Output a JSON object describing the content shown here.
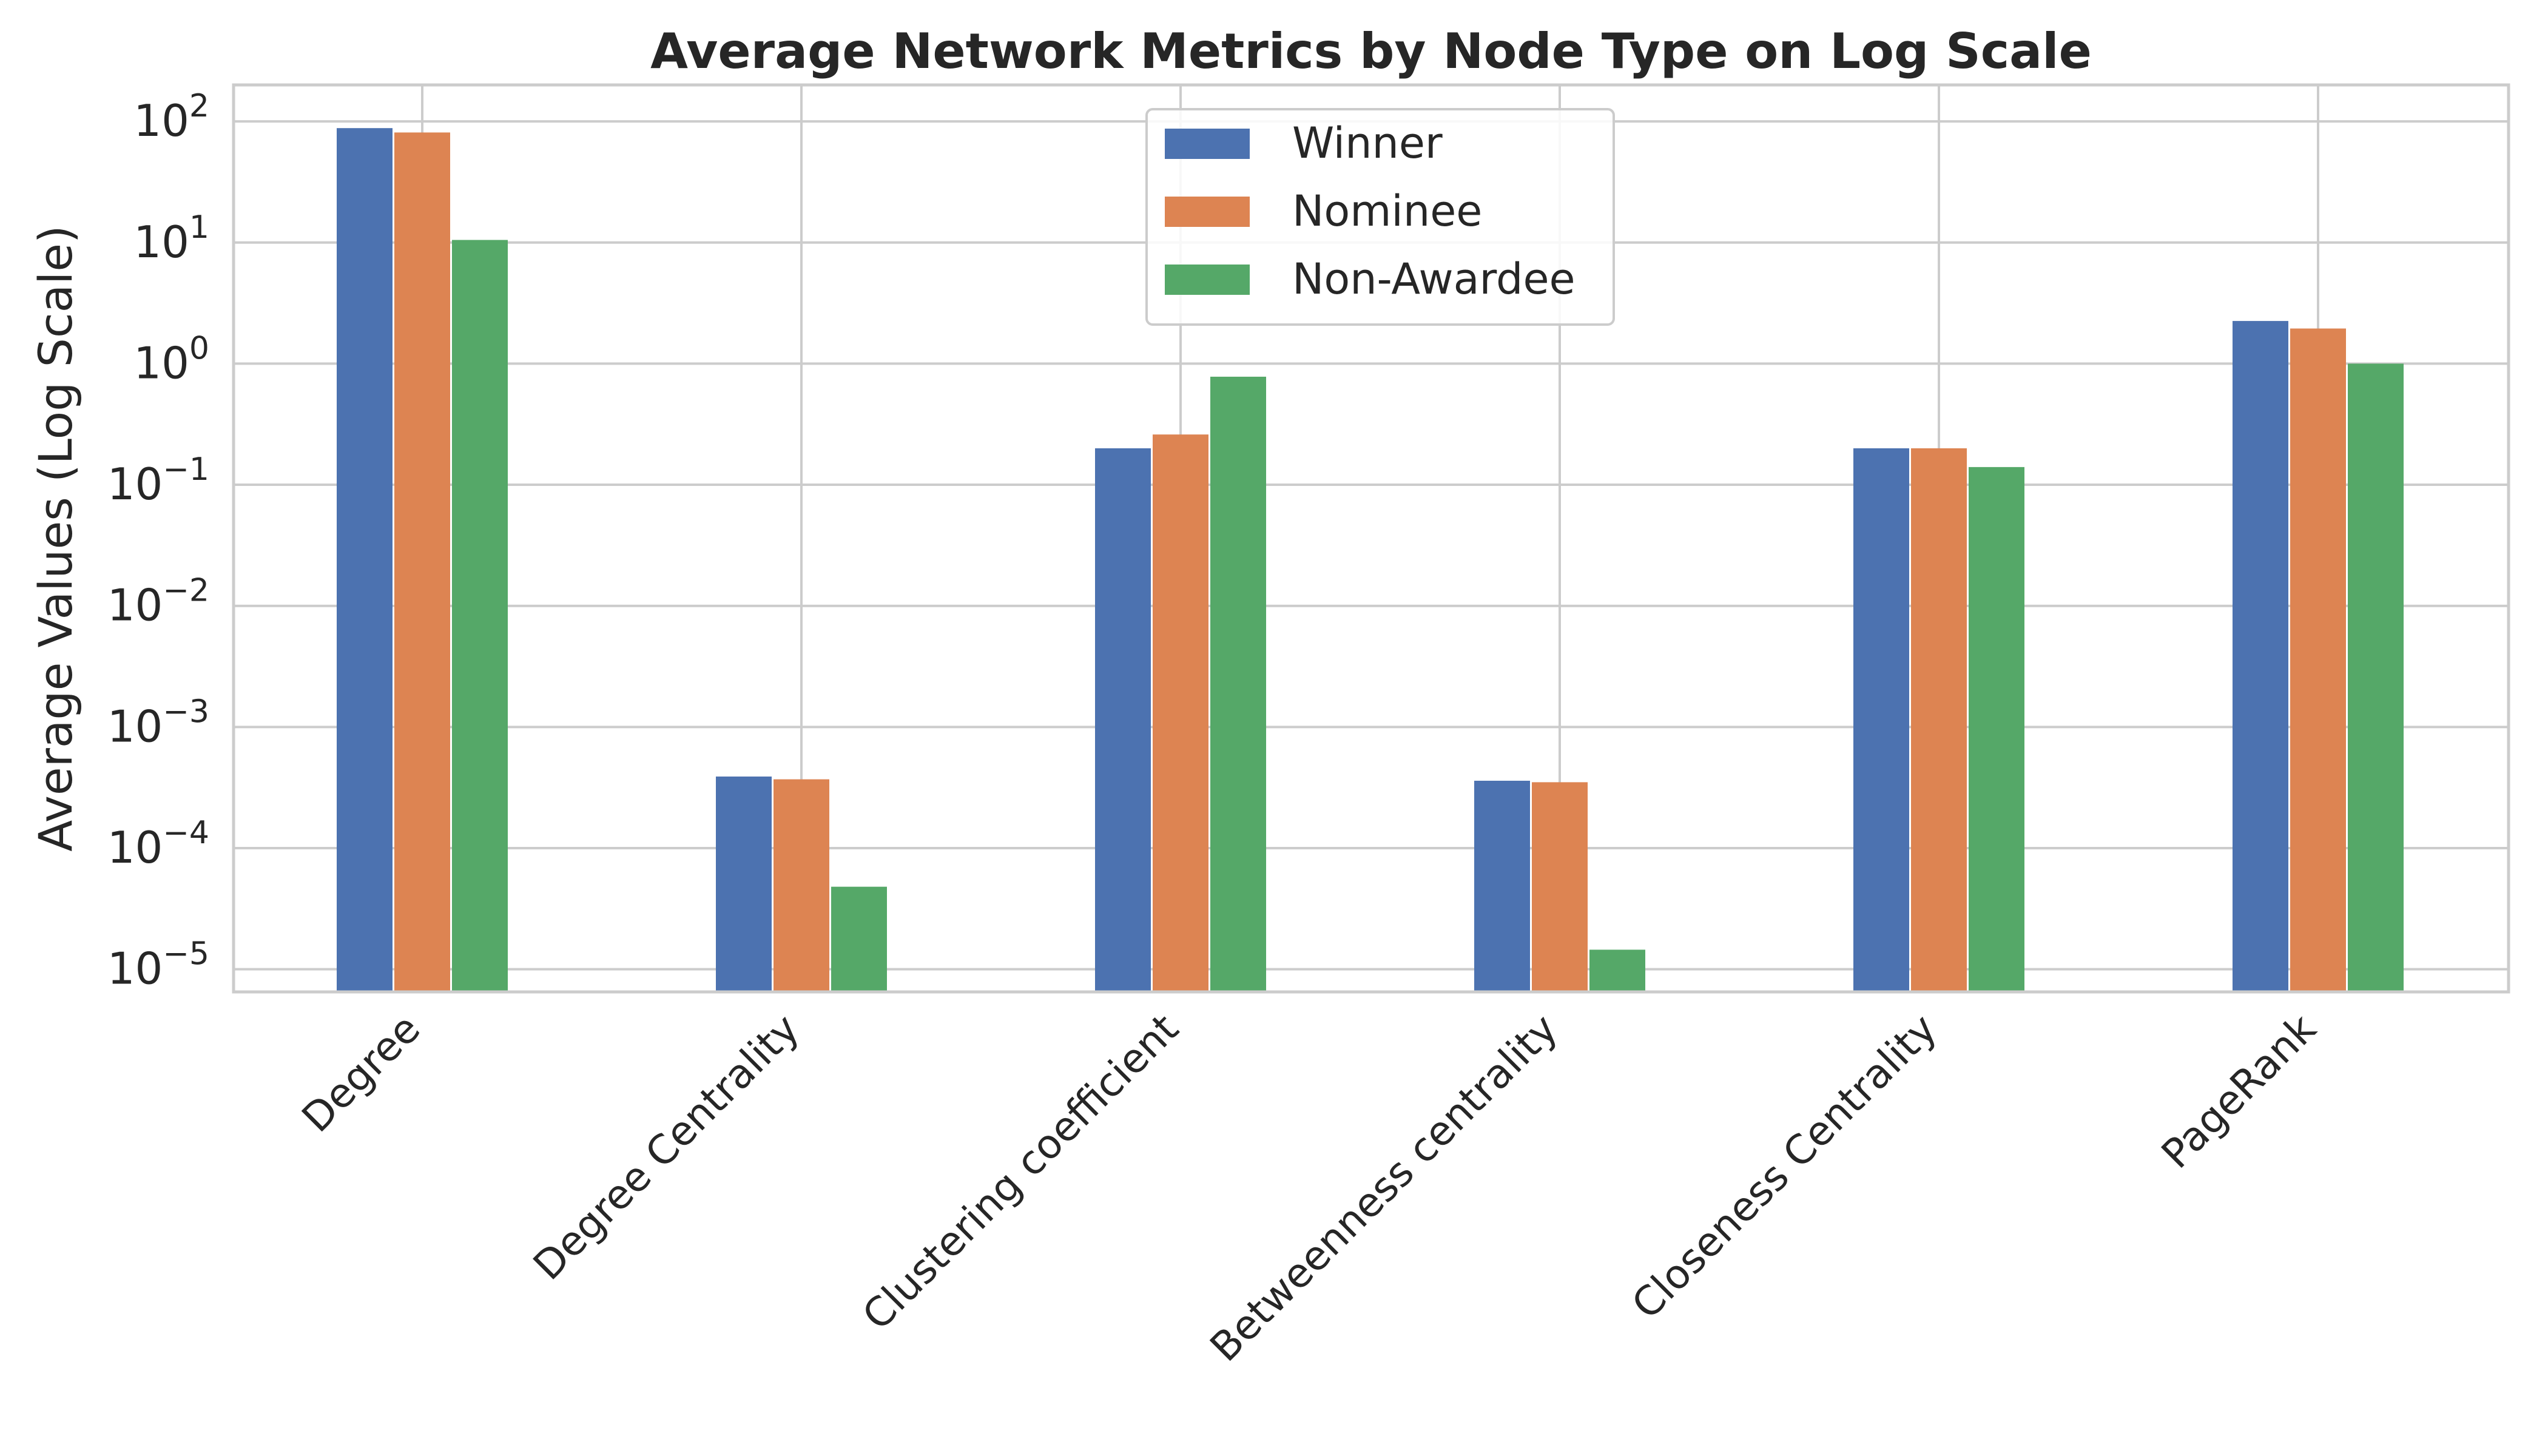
{
  "chart_data": {
    "type": "bar",
    "title": "Average Network Metrics by Node Type on Log Scale",
    "xlabel": "",
    "ylabel": "Average Values (Log Scale)",
    "yscale": "log",
    "ylim": [
      6.5e-06,
      200
    ],
    "ytick_exponents": [
      2,
      1,
      0,
      -1,
      -2,
      -3,
      -4,
      -5
    ],
    "grid": true,
    "legend_position": "top-center",
    "categories": [
      "Degree",
      "Degree Centrality",
      "Clustering coefficient",
      "Betweenness centrality",
      "Closeness Centrality",
      "PageRank"
    ],
    "series": [
      {
        "name": "Winner",
        "color": "#4c72b0",
        "values": [
          88,
          0.00039,
          0.2,
          0.00036,
          0.2,
          2.25
        ]
      },
      {
        "name": "Nominee",
        "color": "#dd8452",
        "values": [
          81,
          0.00037,
          0.26,
          0.00035,
          0.2,
          1.95
        ]
      },
      {
        "name": "Non-Awardee",
        "color": "#55a868",
        "values": [
          10.5,
          4.8e-05,
          0.78,
          1.45e-05,
          0.14,
          1.0
        ]
      }
    ]
  }
}
